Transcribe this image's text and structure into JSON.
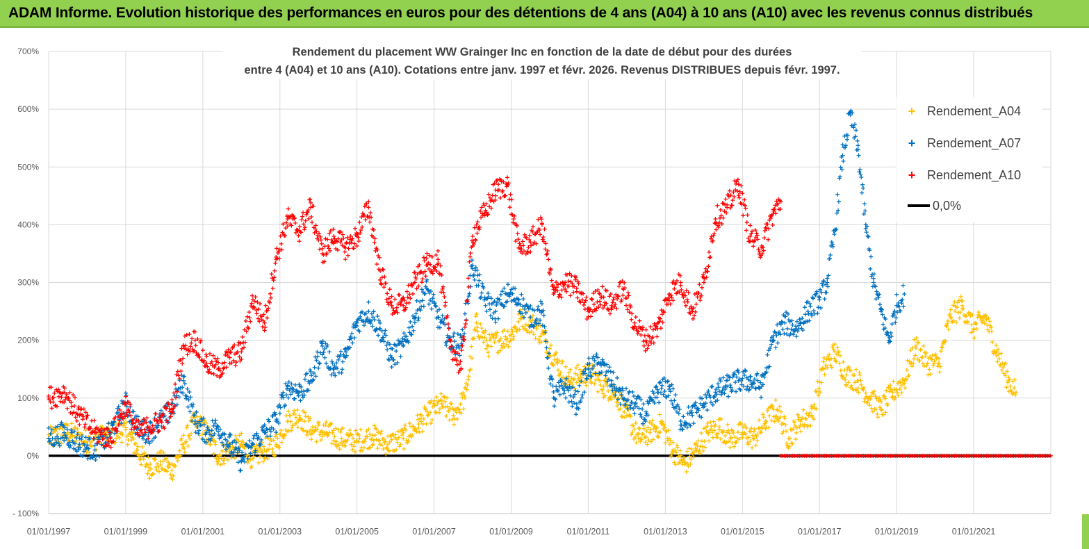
{
  "banner": {
    "title": "ADAM Informe. Evolution historique des performances en euros pour des détentions de 4 ans (A04) à 10 ans (A10) avec les revenus connus distribués"
  },
  "colors": {
    "banner_bg": "#92d050",
    "A04": "#ffc000",
    "A07": "#0070c0",
    "A10": "#ff0000",
    "zero": "#000000"
  },
  "chart_data": {
    "type": "scatter",
    "title": "Rendement du placement WW Grainger Inc en fonction de la date de début pour des durées entre 4 (A04) et 10 ans (A10). Cotations entre janv. 1997 et févr. 2026. Revenus DISTRIBUES depuis févr. 1997.",
    "title_lines": [
      "Rendement du placement WW Grainger Inc en fonction de la date de début pour des durées",
      "entre 4 (A04) et 10 ans (A10).  Cotations entre janv. 1997 et févr. 2026. Revenus DISTRIBUES depuis févr. 1997."
    ],
    "x_tick_labels": [
      "01/01/1997",
      "01/01/1999",
      "01/01/2001",
      "01/01/2003",
      "01/01/2005",
      "01/01/2007",
      "01/01/2009",
      "01/01/2011",
      "01/01/2013",
      "01/01/2015",
      "01/01/2017",
      "01/01/2019",
      "01/01/2021"
    ],
    "y_tick_labels": [
      "- 100%",
      "0%",
      "100%",
      "200%",
      "300%",
      "400%",
      "500%",
      "600%",
      "700%"
    ],
    "xlim": [
      1997.0,
      2023.0
    ],
    "ylim": [
      -100,
      700
    ],
    "grid": true,
    "legend_position": "top-right",
    "legend": [
      "Rendement_A04",
      "Rendement_A07",
      "Rendement_A10",
      "0,0%"
    ],
    "series": [
      {
        "name": "Rendement_A04",
        "x": [
          1997.0,
          1997.5,
          1998.0,
          1998.5,
          1999.0,
          1999.3,
          1999.6,
          1999.9,
          2000.2,
          2000.5,
          2000.8,
          2001.1,
          2001.4,
          2001.7,
          2002.0,
          2002.3,
          2002.6,
          2002.9,
          2003.2,
          2003.5,
          2003.8,
          2004.2,
          2004.6,
          2005.0,
          2005.4,
          2005.8,
          2006.2,
          2006.6,
          2006.9,
          2007.2,
          2007.5,
          2007.8,
          2008.1,
          2008.4,
          2008.7,
          2009.0,
          2009.3,
          2009.6,
          2009.9,
          2010.2,
          2010.5,
          2010.8,
          2011.1,
          2011.4,
          2011.7,
          2012.0,
          2012.3,
          2012.6,
          2012.9,
          2013.2,
          2013.5,
          2013.8,
          2014.1,
          2014.4,
          2014.7,
          2015.0,
          2015.3,
          2015.6,
          2015.9,
          2016.2,
          2016.5,
          2016.8,
          2017.1,
          2017.4,
          2017.7,
          2018.0,
          2018.3,
          2018.6,
          2018.9,
          2019.2,
          2019.5,
          2019.8,
          2020.1,
          2020.4,
          2020.7,
          2021.0,
          2021.3,
          2021.6,
          2021.9,
          2022.1
        ],
        "y": [
          30,
          40,
          25,
          35,
          45,
          10,
          -20,
          -10,
          -25,
          20,
          60,
          40,
          0,
          10,
          20,
          -5,
          10,
          20,
          60,
          70,
          45,
          40,
          30,
          25,
          35,
          20,
          30,
          55,
          75,
          90,
          70,
          100,
          230,
          190,
          200,
          210,
          240,
          225,
          200,
          160,
          130,
          140,
          140,
          120,
          110,
          70,
          30,
          40,
          55,
          10,
          -15,
          10,
          40,
          50,
          30,
          40,
          30,
          60,
          80,
          30,
          60,
          70,
          150,
          180,
          140,
          130,
          100,
          80,
          110,
          130,
          190,
          160,
          160,
          240,
          260,
          220,
          240,
          180,
          130,
          110
        ]
      },
      {
        "name": "Rendement_A07",
        "x": [
          1997.0,
          1997.4,
          1997.8,
          1998.2,
          1998.6,
          1999.0,
          1999.3,
          1999.6,
          1999.9,
          2000.2,
          2000.5,
          2000.8,
          2001.1,
          2001.4,
          2001.7,
          2002.0,
          2002.3,
          2002.6,
          2002.9,
          2003.2,
          2003.5,
          2003.8,
          2004.1,
          2004.4,
          2004.7,
          2005.0,
          2005.3,
          2005.6,
          2005.9,
          2006.2,
          2006.5,
          2006.8,
          2007.1,
          2007.4,
          2007.7,
          2008.0,
          2008.3,
          2008.6,
          2008.9,
          2009.2,
          2009.5,
          2009.8,
          2010.1,
          2010.4,
          2010.7,
          2011.0,
          2011.3,
          2011.6,
          2011.9,
          2012.2,
          2012.5,
          2012.8,
          2013.1,
          2013.4,
          2013.7,
          2014.0,
          2014.3,
          2014.6,
          2014.9,
          2015.2,
          2015.5,
          2015.8,
          2016.1,
          2016.4,
          2016.7,
          2017.0,
          2017.2,
          2017.4,
          2017.6,
          2017.8,
          2018.0,
          2018.2,
          2018.4,
          2018.6,
          2018.8,
          2019.0,
          2019.2
        ],
        "y": [
          30,
          40,
          20,
          10,
          40,
          90,
          50,
          40,
          60,
          80,
          130,
          60,
          40,
          50,
          20,
          -10,
          20,
          40,
          60,
          120,
          110,
          130,
          190,
          150,
          170,
          230,
          250,
          220,
          170,
          190,
          240,
          290,
          240,
          200,
          190,
          330,
          270,
          250,
          280,
          270,
          240,
          250,
          100,
          120,
          90,
          150,
          160,
          130,
          100,
          90,
          70,
          110,
          120,
          60,
          70,
          90,
          110,
          120,
          130,
          130,
          120,
          200,
          230,
          220,
          250,
          270,
          300,
          390,
          520,
          590,
          530,
          400,
          300,
          250,
          200,
          260,
          280
        ]
      },
      {
        "name": "Rendement_A10",
        "x": [
          1997.0,
          1997.4,
          1997.8,
          1998.2,
          1998.6,
          1999.0,
          1999.3,
          1999.6,
          1999.9,
          2000.2,
          2000.5,
          2000.8,
          2001.1,
          2001.4,
          2001.7,
          2002.0,
          2002.3,
          2002.6,
          2002.9,
          2003.2,
          2003.5,
          2003.8,
          2004.1,
          2004.4,
          2004.7,
          2005.0,
          2005.3,
          2005.6,
          2005.9,
          2006.2,
          2006.5,
          2006.8,
          2007.1,
          2007.4,
          2007.7,
          2008.0,
          2008.3,
          2008.6,
          2008.9,
          2009.2,
          2009.5,
          2009.8,
          2010.1,
          2010.4,
          2010.7,
          2011.0,
          2011.3,
          2011.6,
          2011.9,
          2012.2,
          2012.5,
          2012.8,
          2013.1,
          2013.4,
          2013.7,
          2014.0,
          2014.3,
          2014.6,
          2014.9,
          2015.2,
          2015.5,
          2015.8,
          2016.0
        ],
        "y": [
          100,
          110,
          70,
          40,
          30,
          90,
          40,
          50,
          60,
          80,
          190,
          200,
          160,
          150,
          170,
          180,
          270,
          230,
          340,
          410,
          390,
          430,
          350,
          380,
          360,
          380,
          430,
          320,
          260,
          260,
          300,
          330,
          340,
          200,
          150,
          380,
          420,
          460,
          470,
          360,
          370,
          400,
          280,
          300,
          290,
          250,
          280,
          260,
          290,
          230,
          200,
          220,
          280,
          300,
          250,
          300,
          410,
          430,
          470,
          380,
          360,
          420,
          440
        ]
      },
      {
        "name": "0,0%",
        "x": [
          1997.0,
          2023.0
        ],
        "y": [
          0,
          0
        ]
      }
    ],
    "zero_red_segment": {
      "x": [
        2016.0,
        2023.0
      ],
      "y": [
        0,
        0
      ]
    }
  }
}
